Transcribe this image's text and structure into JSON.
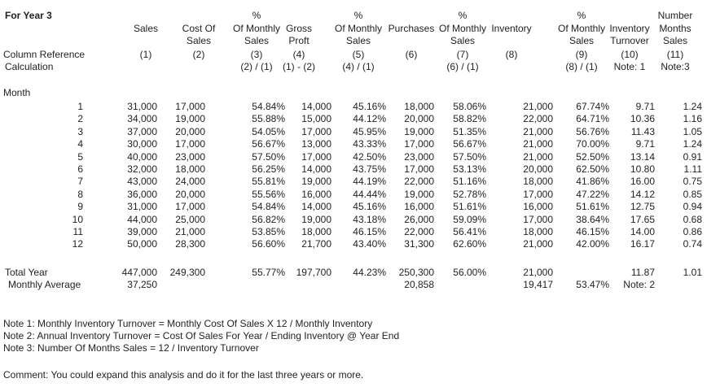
{
  "title": "For Year 3",
  "headers": [
    {
      "line1": "",
      "line2": "Sales",
      "line3": ""
    },
    {
      "line1": "",
      "line2": "Cost Of",
      "line3": "Sales"
    },
    {
      "line1": "%",
      "line2": "Of Monthly",
      "line3": "Sales"
    },
    {
      "line1": "",
      "line2": "Gross",
      "line3": "Proft"
    },
    {
      "line1": "%",
      "line2": "Of Monthly",
      "line3": "Sales"
    },
    {
      "line1": "",
      "line2": "Purchases",
      "line3": ""
    },
    {
      "line1": "%",
      "line2": "Of Monthly",
      "line3": "Sales"
    },
    {
      "line1": "",
      "line2": "Inventory",
      "line3": ""
    },
    {
      "line1": "%",
      "line2": "Of Monthly",
      "line3": "Sales"
    },
    {
      "line1": "",
      "line2": "Inventory",
      "line3": "Turnover"
    },
    {
      "line1": "Number",
      "line2": "Months",
      "line3": "Sales"
    }
  ],
  "column_reference_label": "Column Reference",
  "calculation_label": "Calculation",
  "column_refs": [
    "(1)",
    "(2)",
    "(3)",
    "(4)",
    "(5)",
    "(6)",
    "(7)",
    "(8)",
    "(9)",
    "(10)",
    "(11)"
  ],
  "calculations": [
    "",
    "",
    "(2) / (1)",
    "(1) - (2)",
    "(4) / (1)",
    "",
    "(6) / (1)",
    "",
    "(8) / (1)",
    "Note: 1",
    "Note:3"
  ],
  "month_label": "Month",
  "rows": [
    {
      "month": "1",
      "cells": [
        "31,000",
        "17,000",
        "54.84%",
        "14,000",
        "45.16%",
        "18,000",
        "58.06%",
        "21,000",
        "67.74%",
        "9.71",
        "1.24"
      ]
    },
    {
      "month": "2",
      "cells": [
        "34,000",
        "19,000",
        "55.88%",
        "15,000",
        "44.12%",
        "20,000",
        "58.82%",
        "22,000",
        "64.71%",
        "10.36",
        "1.16"
      ]
    },
    {
      "month": "3",
      "cells": [
        "37,000",
        "20,000",
        "54.05%",
        "17,000",
        "45.95%",
        "19,000",
        "51.35%",
        "21,000",
        "56.76%",
        "11.43",
        "1.05"
      ]
    },
    {
      "month": "4",
      "cells": [
        "30,000",
        "17,000",
        "56.67%",
        "13,000",
        "43.33%",
        "17,000",
        "56.67%",
        "21,000",
        "70.00%",
        "9.71",
        "1.24"
      ]
    },
    {
      "month": "5",
      "cells": [
        "40,000",
        "23,000",
        "57.50%",
        "17,000",
        "42.50%",
        "23,000",
        "57.50%",
        "21,000",
        "52.50%",
        "13.14",
        "0.91"
      ]
    },
    {
      "month": "6",
      "cells": [
        "32,000",
        "18,000",
        "56.25%",
        "14,000",
        "43.75%",
        "17,000",
        "53.13%",
        "20,000",
        "62.50%",
        "10.80",
        "1.11"
      ]
    },
    {
      "month": "7",
      "cells": [
        "43,000",
        "24,000",
        "55.81%",
        "19,000",
        "44.19%",
        "22,000",
        "51.16%",
        "18,000",
        "41.86%",
        "16.00",
        "0.75"
      ]
    },
    {
      "month": "8",
      "cells": [
        "36,000",
        "20,000",
        "55.56%",
        "16,000",
        "44.44%",
        "19,000",
        "52.78%",
        "17,000",
        "47.22%",
        "14.12",
        "0.85"
      ]
    },
    {
      "month": "9",
      "cells": [
        "31,000",
        "17,000",
        "54.84%",
        "14,000",
        "45.16%",
        "16,000",
        "51.61%",
        "16,000",
        "51.61%",
        "12.75",
        "0.94"
      ]
    },
    {
      "month": "10",
      "cells": [
        "44,000",
        "25,000",
        "56.82%",
        "19,000",
        "43.18%",
        "26,000",
        "59.09%",
        "17,000",
        "38.64%",
        "17.65",
        "0.68"
      ]
    },
    {
      "month": "11",
      "cells": [
        "39,000",
        "21,000",
        "53.85%",
        "18,000",
        "46.15%",
        "22,000",
        "56.41%",
        "18,000",
        "46.15%",
        "14.00",
        "0.86"
      ]
    },
    {
      "month": "12",
      "cells": [
        "50,000",
        "28,300",
        "56.60%",
        "21,700",
        "43.40%",
        "31,300",
        "62.60%",
        "21,000",
        "42.00%",
        "16.17",
        "0.74"
      ]
    }
  ],
  "total": {
    "label": "Total Year",
    "cells": [
      "447,000",
      "249,300",
      "55.77%",
      "197,700",
      "44.23%",
      "250,300",
      "56.00%",
      "21,000",
      "",
      "11.87",
      "1.01"
    ]
  },
  "average": {
    "label": "Monthly Average",
    "cells": [
      "37,250",
      "",
      "",
      "",
      "",
      "20,858",
      "",
      "19,417",
      "53.47%",
      "Note: 2",
      ""
    ]
  },
  "notes": [
    "Note 1: Monthly Inventory Turnover = Monthly Cost Of Sales X 12 / Monthly Inventory",
    "Note 2: Annual Inventory Turnover = Cost Of Sales For Year / Ending Inventory @ Year End",
    "Note 3: Number Of Months Sales = 12 / Inventory Turnover"
  ],
  "comment": "Comment: You could expand this analysis and do it for the last three years or more."
}
